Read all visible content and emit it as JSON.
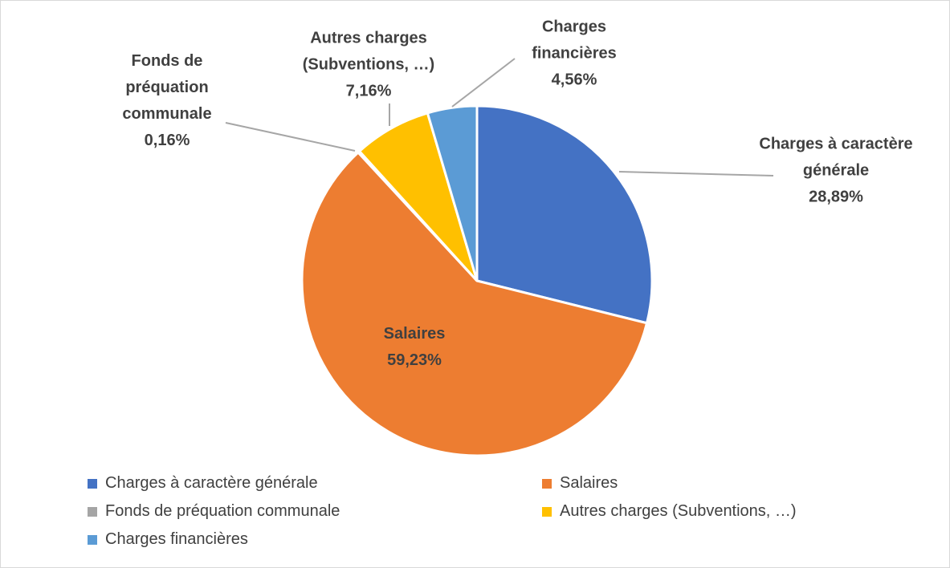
{
  "chart_data": {
    "type": "pie",
    "categories": [
      "Charges à caractère générale",
      "Salaires",
      "Fonds de préquation communale",
      "Autres charges (Subventions, …)",
      "Charges financières"
    ],
    "values": [
      28.89,
      59.23,
      0.16,
      7.16,
      4.56
    ],
    "value_labels": [
      "28,89%",
      "59,23%",
      "0,16%",
      "7,16%",
      "4,56%"
    ],
    "colors": [
      "#4472c4",
      "#ed7d31",
      "#a5a5a5",
      "#ffc000",
      "#5b9bd5"
    ],
    "legend": "bottom"
  }
}
